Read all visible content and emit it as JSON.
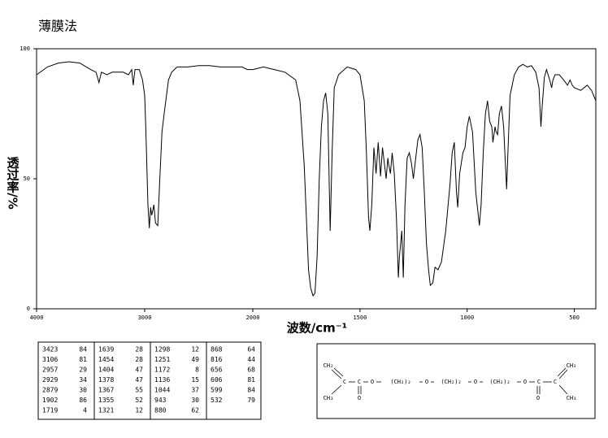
{
  "chart_data": {
    "type": "line",
    "title": "薄膜法",
    "xlabel": "波数/cm⁻¹",
    "ylabel": "透过率/%",
    "color": "#000000",
    "xlim": [
      4000,
      400
    ],
    "x_scale_break": 2000,
    "xticks": [
      4000,
      3000,
      2000,
      1500,
      1000,
      500
    ],
    "ylim": [
      0,
      100
    ],
    "yticks": [
      0,
      50,
      100
    ],
    "x": [
      4000,
      3900,
      3800,
      3700,
      3600,
      3500,
      3450,
      3423,
      3400,
      3350,
      3300,
      3200,
      3150,
      3120,
      3106,
      3090,
      3050,
      3020,
      3000,
      2990,
      2970,
      2957,
      2945,
      2935,
      2929,
      2915,
      2900,
      2879,
      2860,
      2840,
      2820,
      2780,
      2750,
      2700,
      2600,
      2500,
      2400,
      2300,
      2200,
      2100,
      2050,
      2000,
      1950,
      1900,
      1850,
      1800,
      1780,
      1760,
      1740,
      1730,
      1719,
      1710,
      1700,
      1690,
      1680,
      1670,
      1660,
      1650,
      1639,
      1630,
      1620,
      1600,
      1560,
      1520,
      1500,
      1480,
      1470,
      1460,
      1454,
      1445,
      1435,
      1425,
      1415,
      1404,
      1395,
      1385,
      1378,
      1370,
      1367,
      1358,
      1350,
      1340,
      1330,
      1321,
      1316,
      1305,
      1298,
      1290,
      1280,
      1270,
      1260,
      1251,
      1240,
      1230,
      1220,
      1210,
      1200,
      1190,
      1180,
      1172,
      1160,
      1150,
      1136,
      1120,
      1100,
      1080,
      1070,
      1060,
      1050,
      1044,
      1035,
      1020,
      1010,
      1000,
      990,
      975,
      960,
      943,
      935,
      925,
      915,
      905,
      895,
      885,
      880,
      870,
      865,
      858,
      850,
      840,
      830,
      816,
      810,
      800,
      780,
      760,
      740,
      720,
      700,
      680,
      665,
      656,
      650,
      640,
      630,
      615,
      606,
      600,
      590,
      570,
      550,
      532,
      520,
      510,
      500,
      470,
      440,
      420,
      400
    ],
    "values": [
      90,
      93,
      94.5,
      95,
      94.5,
      92,
      91,
      87,
      91,
      90,
      91,
      91,
      90,
      92,
      86,
      92,
      92,
      88,
      82,
      70,
      40,
      31,
      39,
      36,
      37,
      40,
      33,
      32,
      50,
      68,
      75,
      88,
      91,
      93,
      93,
      93.5,
      93.5,
      93,
      93,
      93,
      92,
      92,
      93,
      92,
      91,
      88,
      80,
      55,
      15,
      8,
      5,
      6,
      20,
      50,
      70,
      80,
      83,
      75,
      30,
      60,
      85,
      90,
      93,
      92,
      90,
      80,
      60,
      35,
      30,
      40,
      62,
      52,
      64,
      51,
      62,
      55,
      50,
      58,
      56,
      52,
      60,
      52,
      35,
      12,
      20,
      30,
      12,
      40,
      58,
      60,
      56,
      50,
      58,
      65,
      67,
      62,
      45,
      25,
      15,
      9,
      10,
      16,
      15,
      18,
      30,
      48,
      60,
      64,
      45,
      39,
      52,
      60,
      62,
      70,
      74,
      68,
      45,
      32,
      40,
      60,
      75,
      80,
      72,
      70,
      64,
      70,
      68,
      67,
      75,
      78,
      70,
      46,
      60,
      82,
      90,
      93,
      94,
      93,
      93.5,
      91,
      85,
      70,
      78,
      89,
      92,
      88,
      85,
      88,
      90,
      90,
      88,
      86,
      88,
      86,
      85,
      84,
      86,
      84,
      80
    ]
  },
  "peak_table": {
    "rows": [
      [
        [
          3423,
          84
        ],
        [
          3106,
          81
        ],
        [
          2957,
          29
        ],
        [
          2929,
          34
        ],
        [
          2879,
          30
        ],
        [
          1902,
          86
        ],
        [
          1719,
          4
        ]
      ],
      [
        [
          1639,
          28
        ],
        [
          1454,
          28
        ],
        [
          1404,
          47
        ],
        [
          1378,
          47
        ],
        [
          1367,
          55
        ],
        [
          1355,
          52
        ],
        [
          1321,
          12
        ]
      ],
      [
        [
          1298,
          12
        ],
        [
          1251,
          49
        ],
        [
          1172,
          8
        ],
        [
          1136,
          15
        ],
        [
          1044,
          37
        ],
        [
          943,
          30
        ],
        [
          880,
          62
        ]
      ],
      [
        [
          868,
          64
        ],
        [
          816,
          44
        ],
        [
          656,
          68
        ],
        [
          606,
          81
        ],
        [
          599,
          84
        ],
        [
          532,
          79
        ]
      ]
    ]
  },
  "structure": {
    "labels": [
      "CH₂",
      "C",
      "C",
      "O",
      "(CH₂)₂",
      "O",
      "(CH₂)₂",
      "O",
      "(CH₂)₂",
      "O",
      "C",
      "C",
      "CH₂",
      "CH₃",
      "O",
      "O",
      "CH₃"
    ]
  }
}
